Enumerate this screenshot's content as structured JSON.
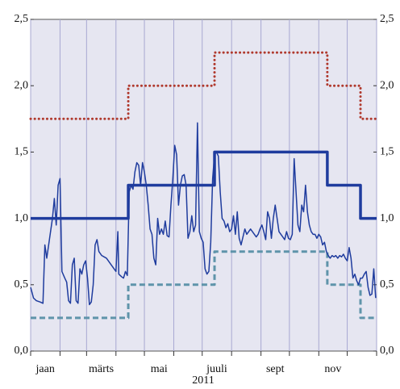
{
  "chart_data": {
    "type": "line",
    "xlabel": "2011",
    "xlim": [
      0,
      365
    ],
    "xticks": [
      0,
      31,
      59,
      90,
      120,
      151,
      181,
      212,
      243,
      273,
      304,
      334,
      365
    ],
    "xlabels": [
      {
        "value": 15.5,
        "label": "jaan"
      },
      {
        "value": 74.5,
        "label": "märts"
      },
      {
        "value": 135.5,
        "label": "mai"
      },
      {
        "value": 196.5,
        "label": "juuli"
      },
      {
        "value": 258,
        "label": "sept"
      },
      {
        "value": 319,
        "label": "nov"
      }
    ],
    "ylim": [
      0,
      2.5
    ],
    "yticks": [
      {
        "value": 0,
        "label": "0,0"
      },
      {
        "value": 0.5,
        "label": "0,5"
      },
      {
        "value": 1,
        "label": "1,0"
      },
      {
        "value": 1.5,
        "label": "1,5"
      },
      {
        "value": 2,
        "label": "2,0"
      },
      {
        "value": 2.5,
        "label": "2,5"
      }
    ],
    "y2lim": [
      0,
      2.5
    ],
    "y2ticks": [
      {
        "value": 0,
        "label": "0,0"
      },
      {
        "value": 0.5,
        "label": "0,5"
      },
      {
        "value": 1,
        "label": "1,0"
      },
      {
        "value": 1.5,
        "label": "1,5"
      },
      {
        "value": 2,
        "label": "2,0"
      },
      {
        "value": 2.5,
        "label": "2,5"
      }
    ],
    "grid": true,
    "series": [
      {
        "color": "#b03a2e",
        "style": "dotted",
        "x": [
          0,
          103,
          103,
          194,
          194,
          313,
          313,
          348,
          348,
          365
        ],
        "values": [
          1.75,
          1.75,
          2.0,
          2.0,
          2.25,
          2.25,
          2.0,
          2.0,
          1.75,
          1.75
        ]
      },
      {
        "color": "#1f3c9e",
        "style": "thick",
        "x": [
          0,
          103,
          103,
          194,
          194,
          313,
          313,
          348,
          348,
          365
        ],
        "values": [
          1.0,
          1.0,
          1.25,
          1.25,
          1.5,
          1.5,
          1.25,
          1.25,
          1.0,
          1.0
        ]
      },
      {
        "color": "#5f94aa",
        "style": "dashed",
        "x": [
          0,
          103,
          103,
          194,
          194,
          313,
          313,
          348,
          348,
          365
        ],
        "values": [
          0.25,
          0.25,
          0.5,
          0.5,
          0.75,
          0.75,
          0.5,
          0.5,
          0.25,
          0.25
        ]
      },
      {
        "color": "#1f3c9e",
        "style": "thin",
        "x": [
          0,
          3,
          6,
          10,
          13,
          15,
          17,
          20,
          23,
          25,
          27,
          29,
          31,
          33,
          36,
          38,
          40,
          42,
          44,
          46,
          48,
          50,
          52,
          54,
          56,
          58,
          60,
          62,
          64,
          66,
          68,
          70,
          72,
          75,
          80,
          85,
          88,
          90,
          92,
          93,
          96,
          98,
          100,
          102,
          104,
          106,
          108,
          110,
          112,
          114,
          116,
          118,
          120,
          122,
          124,
          126,
          128,
          130,
          132,
          134,
          136,
          138,
          140,
          142,
          144,
          146,
          148,
          150,
          152,
          154,
          156,
          158,
          160,
          162,
          164,
          166,
          168,
          170,
          172,
          174,
          176,
          178,
          180,
          182,
          184,
          186,
          188,
          190,
          192,
          194,
          196,
          198,
          200,
          202,
          204,
          206,
          208,
          210,
          212,
          214,
          216,
          218,
          220,
          222,
          224,
          226,
          228,
          230,
          232,
          234,
          236,
          238,
          240,
          242,
          244,
          246,
          248,
          250,
          252,
          254,
          256,
          258,
          260,
          262,
          264,
          266,
          268,
          270,
          272,
          274,
          276,
          278,
          280,
          282,
          284,
          286,
          288,
          290,
          292,
          294,
          296,
          298,
          300,
          302,
          304,
          306,
          308,
          310,
          312,
          314,
          316,
          318,
          320,
          322,
          324,
          326,
          328,
          330,
          332,
          334,
          336,
          338,
          340,
          342,
          344,
          346,
          348,
          350,
          352,
          354,
          356,
          358,
          360,
          362,
          364
        ],
        "values": [
          0.48,
          0.4,
          0.38,
          0.37,
          0.36,
          0.8,
          0.7,
          0.85,
          1.0,
          1.15,
          0.95,
          1.25,
          1.3,
          0.6,
          0.55,
          0.52,
          0.38,
          0.36,
          0.65,
          0.7,
          0.38,
          0.36,
          0.62,
          0.58,
          0.65,
          0.68,
          0.55,
          0.35,
          0.37,
          0.5,
          0.8,
          0.84,
          0.75,
          0.72,
          0.7,
          0.65,
          0.62,
          0.6,
          0.9,
          0.58,
          0.56,
          0.55,
          0.6,
          0.57,
          1.2,
          1.25,
          1.22,
          1.35,
          1.42,
          1.4,
          1.25,
          1.42,
          1.35,
          1.25,
          1.1,
          0.92,
          0.88,
          0.7,
          0.65,
          1.0,
          0.88,
          0.92,
          0.88,
          0.98,
          0.87,
          0.86,
          1.1,
          1.3,
          1.55,
          1.48,
          1.1,
          1.25,
          1.32,
          1.33,
          1.25,
          0.85,
          0.9,
          1.02,
          0.9,
          0.95,
          1.72,
          0.9,
          0.85,
          0.82,
          0.62,
          0.58,
          0.6,
          0.82,
          1.3,
          1.48,
          1.5,
          1.47,
          1.2,
          1.0,
          0.98,
          0.93,
          0.96,
          0.9,
          0.92,
          1.02,
          0.88,
          1.05,
          0.85,
          0.8,
          0.86,
          0.92,
          0.88,
          0.9,
          0.92,
          0.9,
          0.88,
          0.86,
          0.88,
          0.92,
          0.95,
          0.9,
          0.84,
          1.05,
          1.0,
          0.85,
          1.0,
          1.1,
          1.0,
          0.9,
          0.88,
          0.86,
          0.84,
          0.9,
          0.85,
          0.84,
          0.88,
          1.45,
          1.2,
          0.95,
          0.9,
          1.1,
          1.05,
          1.25,
          1.05,
          0.95,
          0.9,
          0.88,
          0.88,
          0.85,
          0.88,
          0.86,
          0.8,
          0.82,
          0.75,
          0.72,
          0.7,
          0.72,
          0.71,
          0.72,
          0.7,
          0.72,
          0.71,
          0.73,
          0.7,
          0.68,
          0.78,
          0.7,
          0.55,
          0.58,
          0.53,
          0.5,
          0.55,
          0.55,
          0.58,
          0.6,
          0.48,
          0.42,
          0.43,
          0.62,
          0.4
        ]
      }
    ]
  }
}
